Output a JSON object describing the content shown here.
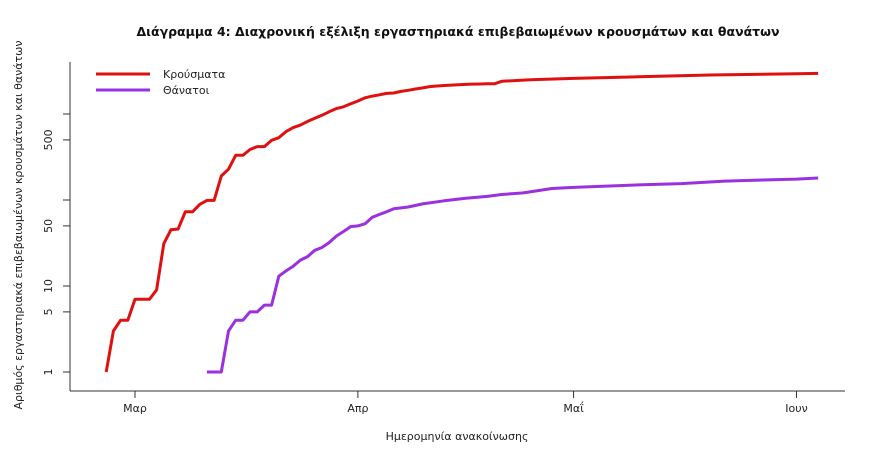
{
  "chart_data": {
    "type": "line",
    "title": "Διάγραμμα 4: Διαχρονική εξέλιξη εργαστηριακά επιβεβαιωμένων κρουσμάτων και θανάτων",
    "xlabel": "Ημερομηνία ανακοίνωσης",
    "ylabel": "Αριθμός εργαστηριακά επιβεβαιωμένων κρουσμάτων και θανάτων",
    "y_scale": "log",
    "ylim": [
      1,
      3000
    ],
    "y_ticks": [
      1,
      5,
      10,
      50,
      100,
      500,
      1000
    ],
    "y_tick_labels": [
      "1",
      "5",
      "10",
      "50",
      "",
      "500",
      ""
    ],
    "x_ticks": [
      "2020-03-01",
      "2020-04-01",
      "2020-05-01",
      "2020-06-01"
    ],
    "x_tick_labels": [
      "Μαρ",
      "Απρ",
      "Μαΐ",
      "Ιουν"
    ],
    "grid": false,
    "legend_position": "top-left",
    "series": [
      {
        "name": "Κρούσματα",
        "color": "#e01010",
        "points": [
          [
            "2020-02-26",
            1
          ],
          [
            "2020-02-27",
            3
          ],
          [
            "2020-02-28",
            4
          ],
          [
            "2020-02-29",
            4
          ],
          [
            "2020-03-01",
            7
          ],
          [
            "2020-03-02",
            7
          ],
          [
            "2020-03-03",
            7
          ],
          [
            "2020-03-04",
            9
          ],
          [
            "2020-03-05",
            31
          ],
          [
            "2020-03-06",
            45
          ],
          [
            "2020-03-07",
            46
          ],
          [
            "2020-03-08",
            73
          ],
          [
            "2020-03-09",
            73
          ],
          [
            "2020-03-10",
            89
          ],
          [
            "2020-03-11",
            99
          ],
          [
            "2020-03-12",
            99
          ],
          [
            "2020-03-13",
            190
          ],
          [
            "2020-03-14",
            228
          ],
          [
            "2020-03-15",
            331
          ],
          [
            "2020-03-16",
            331
          ],
          [
            "2020-03-17",
            387
          ],
          [
            "2020-03-18",
            418
          ],
          [
            "2020-03-19",
            418
          ],
          [
            "2020-03-20",
            495
          ],
          [
            "2020-03-21",
            530
          ],
          [
            "2020-03-22",
            624
          ],
          [
            "2020-03-23",
            695
          ],
          [
            "2020-03-24",
            743
          ],
          [
            "2020-03-25",
            821
          ],
          [
            "2020-03-26",
            892
          ],
          [
            "2020-03-27",
            966
          ],
          [
            "2020-03-28",
            1061
          ],
          [
            "2020-03-29",
            1156
          ],
          [
            "2020-03-30",
            1212
          ],
          [
            "2020-03-31",
            1314
          ],
          [
            "2020-04-01",
            1415
          ],
          [
            "2020-04-02",
            1544
          ],
          [
            "2020-04-03",
            1613
          ],
          [
            "2020-04-04",
            1673
          ],
          [
            "2020-04-05",
            1735
          ],
          [
            "2020-04-06",
            1755
          ],
          [
            "2020-04-07",
            1832
          ],
          [
            "2020-04-08",
            1884
          ],
          [
            "2020-04-09",
            1955
          ],
          [
            "2020-04-10",
            2011
          ],
          [
            "2020-04-11",
            2081
          ],
          [
            "2020-04-12",
            2114
          ],
          [
            "2020-04-13",
            2145
          ],
          [
            "2020-04-14",
            2170
          ],
          [
            "2020-04-15",
            2192
          ],
          [
            "2020-04-16",
            2207
          ],
          [
            "2020-04-17",
            2224
          ],
          [
            "2020-04-18",
            2235
          ],
          [
            "2020-04-19",
            2245
          ],
          [
            "2020-04-20",
            2245
          ],
          [
            "2020-04-21",
            2401
          ],
          [
            "2020-04-25",
            2506
          ],
          [
            "2020-05-01",
            2591
          ],
          [
            "2020-05-10",
            2710
          ],
          [
            "2020-05-20",
            2840
          ],
          [
            "2020-06-01",
            2937
          ],
          [
            "2020-06-04",
            2967
          ]
        ]
      },
      {
        "name": "Θάνατοι",
        "color": "#9b30e0",
        "points": [
          [
            "2020-03-11",
            1
          ],
          [
            "2020-03-12",
            1
          ],
          [
            "2020-03-13",
            1
          ],
          [
            "2020-03-14",
            3
          ],
          [
            "2020-03-15",
            4
          ],
          [
            "2020-03-16",
            4
          ],
          [
            "2020-03-17",
            5
          ],
          [
            "2020-03-18",
            5
          ],
          [
            "2020-03-19",
            6
          ],
          [
            "2020-03-20",
            6
          ],
          [
            "2020-03-21",
            13
          ],
          [
            "2020-03-22",
            15
          ],
          [
            "2020-03-23",
            17
          ],
          [
            "2020-03-24",
            20
          ],
          [
            "2020-03-25",
            22
          ],
          [
            "2020-03-26",
            26
          ],
          [
            "2020-03-27",
            28
          ],
          [
            "2020-03-28",
            32
          ],
          [
            "2020-03-29",
            38
          ],
          [
            "2020-03-30",
            43
          ],
          [
            "2020-03-31",
            49
          ],
          [
            "2020-04-01",
            50
          ],
          [
            "2020-04-02",
            53
          ],
          [
            "2020-04-03",
            63
          ],
          [
            "2020-04-04",
            68
          ],
          [
            "2020-04-05",
            73
          ],
          [
            "2020-04-06",
            79
          ],
          [
            "2020-04-07",
            81
          ],
          [
            "2020-04-08",
            83
          ],
          [
            "2020-04-10",
            90
          ],
          [
            "2020-04-13",
            98
          ],
          [
            "2020-04-16",
            105
          ],
          [
            "2020-04-19",
            110
          ],
          [
            "2020-04-21",
            116
          ],
          [
            "2020-04-24",
            121
          ],
          [
            "2020-04-28",
            136
          ],
          [
            "2020-05-01",
            140
          ],
          [
            "2020-05-10",
            150
          ],
          [
            "2020-05-16",
            155
          ],
          [
            "2020-05-22",
            166
          ],
          [
            "2020-06-01",
            175
          ],
          [
            "2020-06-04",
            180
          ]
        ]
      }
    ]
  }
}
